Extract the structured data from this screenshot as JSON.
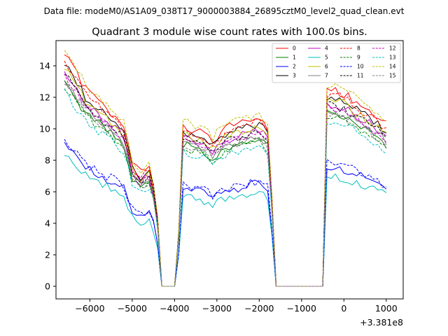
{
  "chart_data": {
    "type": "line",
    "suptitle": "Data file: modeM0/AS1A09_038T17_9000003884_26895cztM0_level2_quad_clean.evt",
    "title": "Quadrant 3 module wise count rates with 100.0s bins.",
    "xlabel": "",
    "ylabel": "",
    "offset_label": "+3.381e8",
    "xlim": [
      -6800,
      1400
    ],
    "ylim": [
      -0.8,
      15.6
    ],
    "xticks": [
      -6000,
      -5000,
      -4000,
      -3000,
      -2000,
      -1000,
      0,
      1000
    ],
    "xtick_labels": [
      "−6000",
      "−5000",
      "−4000",
      "−3000",
      "−2000",
      "−1000",
      "0",
      "1000"
    ],
    "yticks": [
      0,
      2,
      4,
      6,
      8,
      10,
      12,
      14
    ],
    "ytick_labels": [
      "0",
      "2",
      "4",
      "6",
      "8",
      "10",
      "12",
      "14"
    ],
    "legend_position": "upper-right",
    "series": [
      {
        "name": "0",
        "color": "#ff0000",
        "dash": "solid",
        "level": 12.5
      },
      {
        "name": "1",
        "color": "#008000",
        "dash": "solid",
        "level": 11.0
      },
      {
        "name": "2",
        "color": "#0000ff",
        "dash": "solid",
        "level": 7.6
      },
      {
        "name": "3",
        "color": "#000000",
        "dash": "solid",
        "level": 12.0
      },
      {
        "name": "4",
        "color": "#bf00bf",
        "dash": "solid",
        "level": 11.6
      },
      {
        "name": "5",
        "color": "#00bfbf",
        "dash": "solid",
        "level": 7.0
      },
      {
        "name": "6",
        "color": "#bfbf00",
        "dash": "solid",
        "level": 11.8
      },
      {
        "name": "7",
        "color": "#808080",
        "dash": "solid",
        "level": 11.2
      },
      {
        "name": "8",
        "color": "#ff0000",
        "dash": "dashed",
        "level": 12.2
      },
      {
        "name": "9",
        "color": "#008000",
        "dash": "dashed",
        "level": 10.8
      },
      {
        "name": "10",
        "color": "#0000ff",
        "dash": "dashed",
        "level": 7.8
      },
      {
        "name": "11",
        "color": "#000000",
        "dash": "dashed",
        "level": 11.5
      },
      {
        "name": "12",
        "color": "#bf00bf",
        "dash": "dashed",
        "level": 11.4
      },
      {
        "name": "13",
        "color": "#00bfbf",
        "dash": "dashed",
        "level": 10.5
      },
      {
        "name": "14",
        "color": "#bfbf00",
        "dash": "dashed",
        "level": 12.8
      },
      {
        "name": "15",
        "color": "#808080",
        "dash": "dashed",
        "level": 11.0
      }
    ],
    "profile": {
      "bin_width": 100,
      "x_start": -6600,
      "x_end": 1050,
      "pre_shape": [
        [
          -6600,
          1.18
        ],
        [
          -6100,
          1.0
        ],
        [
          -5700,
          0.92
        ],
        [
          -5400,
          0.86
        ],
        [
          -5200,
          0.82
        ],
        [
          -5000,
          0.62
        ],
        [
          -4800,
          0.58
        ],
        [
          -4600,
          0.6
        ],
        [
          -4500,
          0.52
        ]
      ],
      "level_shape": [
        [
          -3800,
          0.82
        ],
        [
          -3600,
          0.8
        ],
        [
          -3300,
          0.78
        ],
        [
          -3100,
          0.74
        ],
        [
          -3000,
          0.76
        ],
        [
          -2800,
          0.8
        ],
        [
          -2400,
          0.83
        ],
        [
          -2000,
          0.86
        ],
        [
          -1800,
          0.8
        ]
      ],
      "end_shape": [
        [
          -400,
          1.0
        ],
        [
          0,
          0.98
        ],
        [
          400,
          0.92
        ],
        [
          800,
          0.86
        ],
        [
          1000,
          0.82
        ]
      ],
      "zero_gaps": [
        [
          -4300,
          -4000
        ],
        [
          -1600,
          -500
        ]
      ],
      "edges": [
        {
          "x": -4400,
          "frac": 0.35
        },
        {
          "x": -3900,
          "frac": 0.28
        },
        {
          "x": -1700,
          "frac": 0.45
        },
        {
          "x": 1050,
          "frac": 0.62
        }
      ]
    }
  }
}
